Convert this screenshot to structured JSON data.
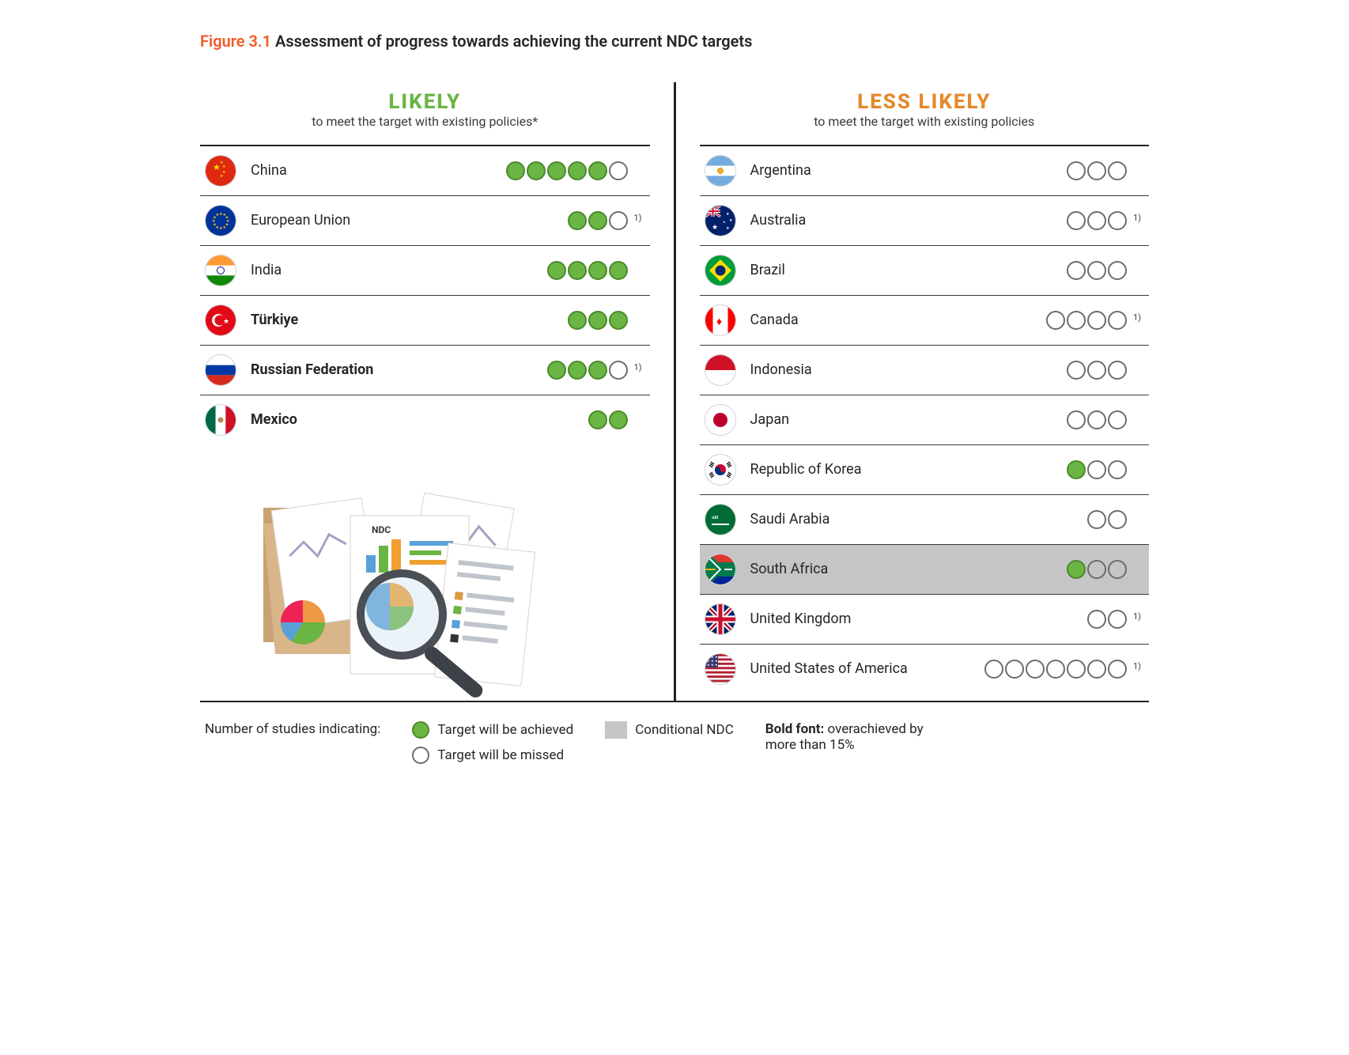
{
  "figure_number": "Figure 3.1",
  "figure_title": "Assessment of progress towards achieving the current NDC targets",
  "colors": {
    "accent_red": "#ef5a28",
    "likely_green": "#6bb544",
    "less_likely_orange": "#e48a2d",
    "text": "#262626",
    "row_border": "#3a3a3a",
    "dot_missed_border": "#6c6c6c",
    "conditional_bg": "#c5c5c5"
  },
  "left": {
    "heading": "LIKELY",
    "heading_color": "#6bb544",
    "subheading": "to meet the target with existing policies*",
    "rows": [
      {
        "flag": "cn",
        "name": "China",
        "bold": false,
        "achieved": 5,
        "missed": 1,
        "note": ""
      },
      {
        "flag": "eu",
        "name": "European Union",
        "bold": false,
        "achieved": 2,
        "missed": 1,
        "note": "1)"
      },
      {
        "flag": "in",
        "name": "India",
        "bold": false,
        "achieved": 4,
        "missed": 0,
        "note": ""
      },
      {
        "flag": "tr",
        "name": "Türkiye",
        "bold": true,
        "achieved": 3,
        "missed": 0,
        "note": ""
      },
      {
        "flag": "ru",
        "name": "Russian Federation",
        "bold": true,
        "achieved": 3,
        "missed": 1,
        "note": "1)"
      },
      {
        "flag": "mx",
        "name": "Mexico",
        "bold": true,
        "achieved": 2,
        "missed": 0,
        "note": ""
      }
    ]
  },
  "right": {
    "heading": "LESS LIKELY",
    "heading_color": "#e48a2d",
    "subheading": "to meet the target with existing policies",
    "rows": [
      {
        "flag": "ar",
        "name": "Argentina",
        "bold": false,
        "achieved": 0,
        "missed": 3,
        "note": ""
      },
      {
        "flag": "au",
        "name": "Australia",
        "bold": false,
        "achieved": 0,
        "missed": 3,
        "note": "1)"
      },
      {
        "flag": "br",
        "name": "Brazil",
        "bold": false,
        "achieved": 0,
        "missed": 3,
        "note": ""
      },
      {
        "flag": "ca",
        "name": "Canada",
        "bold": false,
        "achieved": 0,
        "missed": 4,
        "note": "1)"
      },
      {
        "flag": "id",
        "name": "Indonesia",
        "bold": false,
        "achieved": 0,
        "missed": 3,
        "note": ""
      },
      {
        "flag": "jp",
        "name": "Japan",
        "bold": false,
        "achieved": 0,
        "missed": 3,
        "note": ""
      },
      {
        "flag": "kr",
        "name": "Republic of Korea",
        "bold": false,
        "achieved": 1,
        "missed": 2,
        "note": ""
      },
      {
        "flag": "sa",
        "name": "Saudi Arabia",
        "bold": false,
        "achieved": 0,
        "missed": 2,
        "note": ""
      },
      {
        "flag": "za",
        "name": "South Africa",
        "bold": false,
        "achieved": 1,
        "missed": 2,
        "note": "",
        "conditional": true
      },
      {
        "flag": "gb",
        "name": "United Kingdom",
        "bold": false,
        "achieved": 0,
        "missed": 2,
        "note": "1)"
      },
      {
        "flag": "us",
        "name": "United States of America",
        "bold": false,
        "achieved": 0,
        "missed": 7,
        "note": "1)"
      }
    ]
  },
  "legend": {
    "lead": "Number of studies indicating:",
    "achieved": "Target will be achieved",
    "missed": "Target will be missed",
    "conditional": "Conditional NDC",
    "bold_label": "Bold font:",
    "bold_text": "overachieved by more than 15%"
  },
  "illustration_label": "NDC"
}
